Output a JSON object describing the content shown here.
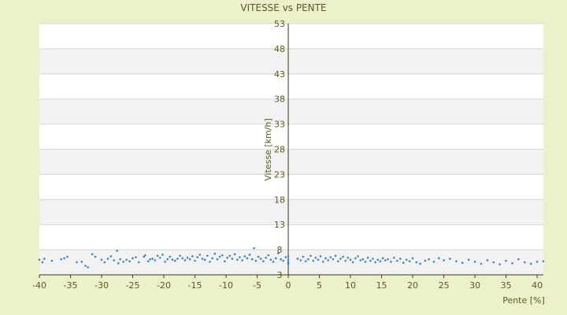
{
  "chart_data": {
    "type": "scatter",
    "title": "VITESSE vs PENTE",
    "xlabel": "Pente [%]",
    "ylabel": "Vitesse [km/h]",
    "xlim": [
      -40,
      41
    ],
    "ylim": [
      3,
      53
    ],
    "xticks": [
      "-40",
      "-35",
      "-30",
      "-25",
      "-20",
      "-15",
      "-10",
      "-5",
      "0",
      "5",
      "10",
      "15",
      "20",
      "25",
      "30",
      "35",
      "40"
    ],
    "yticks": [
      "3",
      "8",
      "13",
      "18",
      "23",
      "28",
      "33",
      "38",
      "43",
      "48",
      "53"
    ],
    "grid": "horizontal bands",
    "colors": {
      "background": "#ecf1cc",
      "plot_band_light": "#ffffff",
      "plot_band_dark": "#f2f2f2",
      "gridline": "#d8d8d8",
      "point": "#3a86c8",
      "text": "#5e5a1e",
      "axis": "#3b3b1a"
    },
    "points": [
      [
        -40.0,
        6.0
      ],
      [
        -39.5,
        5.5
      ],
      [
        -39.2,
        6.2
      ],
      [
        -38.0,
        5.8
      ],
      [
        -36.5,
        6.1
      ],
      [
        -36.0,
        6.3
      ],
      [
        -35.5,
        6.6
      ],
      [
        -34.0,
        5.5
      ],
      [
        -33.2,
        5.6
      ],
      [
        -32.6,
        4.8
      ],
      [
        -32.2,
        4.5
      ],
      [
        -31.5,
        7.1
      ],
      [
        -31.0,
        6.6
      ],
      [
        -30.0,
        6.0
      ],
      [
        -29.5,
        5.5
      ],
      [
        -29.0,
        6.2
      ],
      [
        -28.5,
        6.7
      ],
      [
        -28.0,
        5.9
      ],
      [
        -27.5,
        7.8
      ],
      [
        -27.3,
        5.3
      ],
      [
        -27.0,
        6.1
      ],
      [
        -26.5,
        5.6
      ],
      [
        -26.0,
        6.0
      ],
      [
        -25.5,
        5.7
      ],
      [
        -25.0,
        6.3
      ],
      [
        -24.5,
        6.5
      ],
      [
        -24.0,
        5.5
      ],
      [
        -23.2,
        6.6
      ],
      [
        -23.0,
        6.9
      ],
      [
        -22.5,
        5.7
      ],
      [
        -22.2,
        6.1
      ],
      [
        -21.8,
        6.2
      ],
      [
        -21.4,
        5.9
      ],
      [
        -21.0,
        6.8
      ],
      [
        -20.6,
        6.4
      ],
      [
        -20.2,
        7.0
      ],
      [
        -19.8,
        5.6
      ],
      [
        -19.4,
        6.1
      ],
      [
        -19.0,
        6.6
      ],
      [
        -18.6,
        6.0
      ],
      [
        -18.2,
        5.8
      ],
      [
        -17.8,
        6.2
      ],
      [
        -17.4,
        6.8
      ],
      [
        -17.0,
        6.3
      ],
      [
        -16.6,
        5.9
      ],
      [
        -16.2,
        6.4
      ],
      [
        -15.8,
        6.1
      ],
      [
        -15.4,
        6.7
      ],
      [
        -15.0,
        5.8
      ],
      [
        -14.6,
        6.5
      ],
      [
        -14.2,
        7.0
      ],
      [
        -13.8,
        6.2
      ],
      [
        -13.4,
        6.0
      ],
      [
        -13.0,
        6.8
      ],
      [
        -12.6,
        5.6
      ],
      [
        -12.2,
        6.3
      ],
      [
        -11.8,
        7.2
      ],
      [
        -11.4,
        6.1
      ],
      [
        -11.0,
        6.6
      ],
      [
        -10.6,
        6.9
      ],
      [
        -10.2,
        5.7
      ],
      [
        -9.8,
        6.4
      ],
      [
        -9.4,
        6.8
      ],
      [
        -9.0,
        6.2
      ],
      [
        -8.6,
        7.1
      ],
      [
        -8.2,
        6.0
      ],
      [
        -7.8,
        6.5
      ],
      [
        -7.4,
        5.9
      ],
      [
        -7.0,
        6.7
      ],
      [
        -6.6,
        6.3
      ],
      [
        -6.2,
        7.0
      ],
      [
        -5.8,
        6.1
      ],
      [
        -5.5,
        8.3
      ],
      [
        -5.2,
        5.8
      ],
      [
        -4.8,
        6.6
      ],
      [
        -4.4,
        6.2
      ],
      [
        -4.0,
        5.7
      ],
      [
        -3.6,
        6.4
      ],
      [
        -3.2,
        6.9
      ],
      [
        -2.8,
        6.0
      ],
      [
        -2.4,
        5.6
      ],
      [
        -2.0,
        6.3
      ],
      [
        -1.6,
        7.3
      ],
      [
        -1.2,
        6.1
      ],
      [
        -0.8,
        5.8
      ],
      [
        -0.4,
        6.5
      ],
      [
        0.0,
        6.0
      ],
      [
        0.0,
        5.5
      ],
      [
        0.0,
        6.7
      ],
      [
        0.0,
        5.2
      ],
      [
        1.5,
        6.2
      ],
      [
        2.0,
        5.9
      ],
      [
        2.4,
        6.6
      ],
      [
        2.8,
        5.7
      ],
      [
        3.2,
        6.1
      ],
      [
        3.6,
        6.8
      ],
      [
        4.0,
        5.8
      ],
      [
        4.4,
        6.4
      ],
      [
        4.8,
        6.0
      ],
      [
        5.2,
        6.7
      ],
      [
        5.6,
        5.6
      ],
      [
        6.0,
        6.3
      ],
      [
        6.4,
        5.9
      ],
      [
        6.8,
        6.5
      ],
      [
        7.2,
        6.1
      ],
      [
        7.6,
        6.8
      ],
      [
        8.0,
        5.7
      ],
      [
        8.4,
        6.2
      ],
      [
        8.8,
        6.6
      ],
      [
        9.2,
        5.8
      ],
      [
        9.6,
        6.4
      ],
      [
        10.0,
        6.0
      ],
      [
        10.4,
        5.5
      ],
      [
        10.8,
        6.3
      ],
      [
        11.2,
        6.7
      ],
      [
        11.6,
        5.9
      ],
      [
        12.0,
        6.1
      ],
      [
        12.4,
        5.6
      ],
      [
        12.8,
        6.4
      ],
      [
        13.2,
        5.8
      ],
      [
        13.6,
        6.2
      ],
      [
        14.0,
        5.5
      ],
      [
        14.4,
        6.0
      ],
      [
        14.8,
        5.7
      ],
      [
        15.2,
        6.3
      ],
      [
        15.6,
        5.9
      ],
      [
        16.0,
        6.1
      ],
      [
        16.5,
        5.6
      ],
      [
        17.0,
        6.4
      ],
      [
        17.5,
        5.8
      ],
      [
        18.0,
        6.2
      ],
      [
        18.5,
        5.4
      ],
      [
        19.0,
        6.0
      ],
      [
        19.5,
        5.7
      ],
      [
        20.0,
        6.3
      ],
      [
        20.6,
        5.5
      ],
      [
        21.2,
        5.2
      ],
      [
        22.0,
        5.8
      ],
      [
        22.6,
        6.1
      ],
      [
        23.4,
        5.6
      ],
      [
        24.2,
        6.3
      ],
      [
        25.0,
        5.9
      ],
      [
        26.0,
        6.2
      ],
      [
        27.0,
        5.7
      ],
      [
        28.0,
        5.4
      ],
      [
        29.0,
        6.0
      ],
      [
        30.0,
        5.6
      ],
      [
        31.0,
        5.2
      ],
      [
        32.0,
        5.9
      ],
      [
        33.0,
        5.5
      ],
      [
        34.0,
        5.1
      ],
      [
        35.0,
        5.8
      ],
      [
        36.0,
        5.3
      ],
      [
        37.0,
        6.1
      ],
      [
        38.0,
        5.5
      ],
      [
        39.0,
        5.2
      ],
      [
        40.0,
        5.6
      ],
      [
        41.0,
        5.7
      ]
    ]
  }
}
